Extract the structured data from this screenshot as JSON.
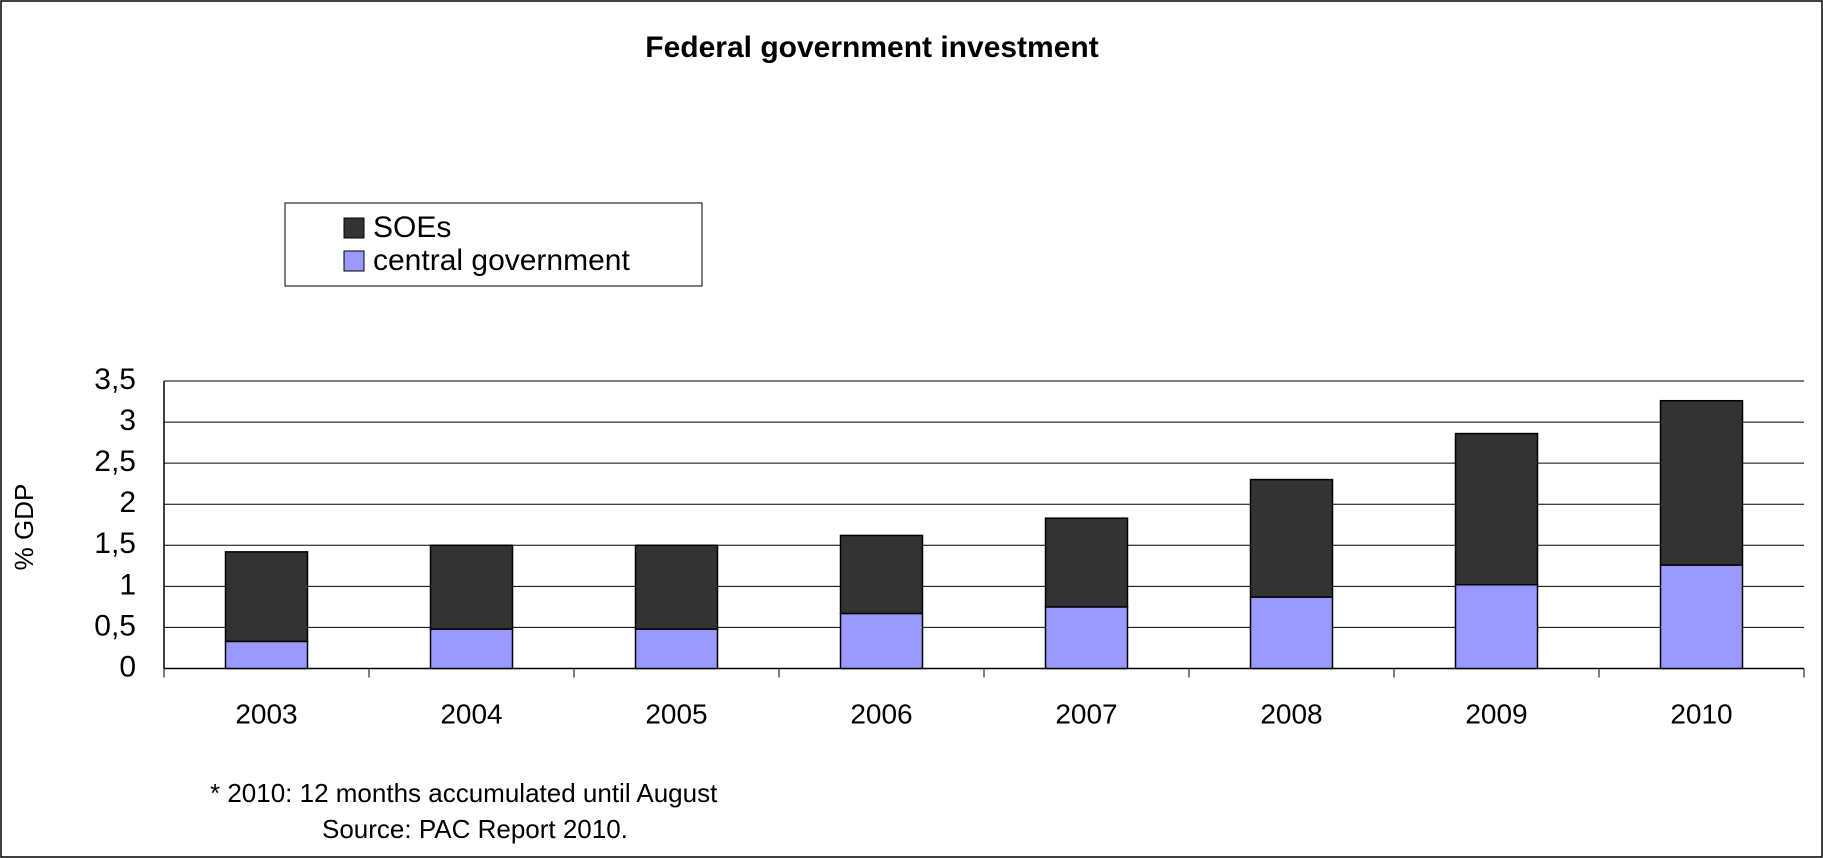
{
  "chart_data": {
    "type": "stacked-bar",
    "title": "Federal government investment",
    "y_label": "% GDP",
    "categories": [
      "2003",
      "2004",
      "2005",
      "2006",
      "2007",
      "2008",
      "2009",
      "2010"
    ],
    "series": [
      {
        "name": "central government",
        "color": "#9999ff",
        "values": [
          0.33,
          0.48,
          0.48,
          0.67,
          0.75,
          0.87,
          1.02,
          1.26
        ]
      },
      {
        "name": "SOEs",
        "color": "#333333",
        "values": [
          1.09,
          1.02,
          1.02,
          0.95,
          1.08,
          1.43,
          1.84,
          2.0
        ]
      }
    ],
    "ylim": [
      0,
      3.5
    ],
    "yticks": [
      0,
      {
        "value": 0.5,
        "label": "0,5"
      },
      1,
      {
        "value": 1.5,
        "label": "1,5"
      },
      2,
      {
        "value": 2.5,
        "label": "2,5"
      },
      3,
      {
        "value": 3.5,
        "label": "3,5"
      }
    ],
    "grid": true,
    "annotations": [
      "* 2010: 12 months accumulated until August",
      "Source: PAC Report 2010."
    ]
  }
}
